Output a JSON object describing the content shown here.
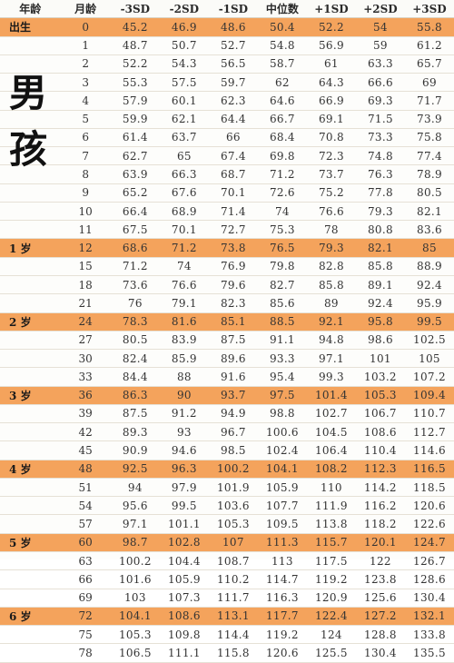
{
  "headers": [
    "年龄",
    "月龄",
    "-3SD",
    "-2SD",
    "-1SD",
    "中位数",
    "+1SD",
    "+2SD",
    "+3SD"
  ],
  "side_label": [
    "男",
    "孩"
  ],
  "rows": [
    {
      "label": "出生",
      "month": "0",
      "values": [
        "45.2",
        "46.9",
        "48.6",
        "50.4",
        "52.2",
        "54",
        "55.8"
      ],
      "highlight": true
    },
    {
      "label": "",
      "month": "1",
      "values": [
        "48.7",
        "50.7",
        "52.7",
        "54.8",
        "56.9",
        "59",
        "61.2"
      ],
      "highlight": false
    },
    {
      "label": "",
      "month": "2",
      "values": [
        "52.2",
        "54.3",
        "56.5",
        "58.7",
        "61",
        "63.3",
        "65.7"
      ],
      "highlight": false
    },
    {
      "label": "",
      "month": "3",
      "values": [
        "55.3",
        "57.5",
        "59.7",
        "62",
        "64.3",
        "66.6",
        "69"
      ],
      "highlight": false
    },
    {
      "label": "",
      "month": "4",
      "values": [
        "57.9",
        "60.1",
        "62.3",
        "64.6",
        "66.9",
        "69.3",
        "71.7"
      ],
      "highlight": false
    },
    {
      "label": "",
      "month": "5",
      "values": [
        "59.9",
        "62.1",
        "64.4",
        "66.7",
        "69.1",
        "71.5",
        "73.9"
      ],
      "highlight": false
    },
    {
      "label": "",
      "month": "6",
      "values": [
        "61.4",
        "63.7",
        "66",
        "68.4",
        "70.8",
        "73.3",
        "75.8"
      ],
      "highlight": false
    },
    {
      "label": "",
      "month": "7",
      "values": [
        "62.7",
        "65",
        "67.4",
        "69.8",
        "72.3",
        "74.8",
        "77.4"
      ],
      "highlight": false
    },
    {
      "label": "",
      "month": "8",
      "values": [
        "63.9",
        "66.3",
        "68.7",
        "71.2",
        "73.7",
        "76.3",
        "78.9"
      ],
      "highlight": false
    },
    {
      "label": "",
      "month": "9",
      "values": [
        "65.2",
        "67.6",
        "70.1",
        "72.6",
        "75.2",
        "77.8",
        "80.5"
      ],
      "highlight": false
    },
    {
      "label": "",
      "month": "10",
      "values": [
        "66.4",
        "68.9",
        "71.4",
        "74",
        "76.6",
        "79.3",
        "82.1"
      ],
      "highlight": false
    },
    {
      "label": "",
      "month": "11",
      "values": [
        "67.5",
        "70.1",
        "72.7",
        "75.3",
        "78",
        "80.8",
        "83.6"
      ],
      "highlight": false
    },
    {
      "label": "1 岁",
      "month": "12",
      "values": [
        "68.6",
        "71.2",
        "73.8",
        "76.5",
        "79.3",
        "82.1",
        "85"
      ],
      "highlight": true
    },
    {
      "label": "",
      "month": "15",
      "values": [
        "71.2",
        "74",
        "76.9",
        "79.8",
        "82.8",
        "85.8",
        "88.9"
      ],
      "highlight": false
    },
    {
      "label": "",
      "month": "18",
      "values": [
        "73.6",
        "76.6",
        "79.6",
        "82.7",
        "85.8",
        "89.1",
        "92.4"
      ],
      "highlight": false
    },
    {
      "label": "",
      "month": "21",
      "values": [
        "76",
        "79.1",
        "82.3",
        "85.6",
        "89",
        "92.4",
        "95.9"
      ],
      "highlight": false
    },
    {
      "label": "2 岁",
      "month": "24",
      "values": [
        "78.3",
        "81.6",
        "85.1",
        "88.5",
        "92.1",
        "95.8",
        "99.5"
      ],
      "highlight": true
    },
    {
      "label": "",
      "month": "27",
      "values": [
        "80.5",
        "83.9",
        "87.5",
        "91.1",
        "94.8",
        "98.6",
        "102.5"
      ],
      "highlight": false
    },
    {
      "label": "",
      "month": "30",
      "values": [
        "82.4",
        "85.9",
        "89.6",
        "93.3",
        "97.1",
        "101",
        "105"
      ],
      "highlight": false
    },
    {
      "label": "",
      "month": "33",
      "values": [
        "84.4",
        "88",
        "91.6",
        "95.4",
        "99.3",
        "103.2",
        "107.2"
      ],
      "highlight": false
    },
    {
      "label": "3 岁",
      "month": "36",
      "values": [
        "86.3",
        "90",
        "93.7",
        "97.5",
        "101.4",
        "105.3",
        "109.4"
      ],
      "highlight": true
    },
    {
      "label": "",
      "month": "39",
      "values": [
        "87.5",
        "91.2",
        "94.9",
        "98.8",
        "102.7",
        "106.7",
        "110.7"
      ],
      "highlight": false
    },
    {
      "label": "",
      "month": "42",
      "values": [
        "89.3",
        "93",
        "96.7",
        "100.6",
        "104.5",
        "108.6",
        "112.7"
      ],
      "highlight": false
    },
    {
      "label": "",
      "month": "45",
      "values": [
        "90.9",
        "94.6",
        "98.5",
        "102.4",
        "106.4",
        "110.4",
        "114.6"
      ],
      "highlight": false
    },
    {
      "label": "4 岁",
      "month": "48",
      "values": [
        "92.5",
        "96.3",
        "100.2",
        "104.1",
        "108.2",
        "112.3",
        "116.5"
      ],
      "highlight": true
    },
    {
      "label": "",
      "month": "51",
      "values": [
        "94",
        "97.9",
        "101.9",
        "105.9",
        "110",
        "114.2",
        "118.5"
      ],
      "highlight": false
    },
    {
      "label": "",
      "month": "54",
      "values": [
        "95.6",
        "99.5",
        "103.6",
        "107.7",
        "111.9",
        "116.2",
        "120.6"
      ],
      "highlight": false
    },
    {
      "label": "",
      "month": "57",
      "values": [
        "97.1",
        "101.1",
        "105.3",
        "109.5",
        "113.8",
        "118.2",
        "122.6"
      ],
      "highlight": false
    },
    {
      "label": "5 岁",
      "month": "60",
      "values": [
        "98.7",
        "102.8",
        "107",
        "111.3",
        "115.7",
        "120.1",
        "124.7"
      ],
      "highlight": true
    },
    {
      "label": "",
      "month": "63",
      "values": [
        "100.2",
        "104.4",
        "108.7",
        "113",
        "117.5",
        "122",
        "126.7"
      ],
      "highlight": false
    },
    {
      "label": "",
      "month": "66",
      "values": [
        "101.6",
        "105.9",
        "110.2",
        "114.7",
        "119.2",
        "123.8",
        "128.6"
      ],
      "highlight": false
    },
    {
      "label": "",
      "month": "69",
      "values": [
        "103",
        "107.3",
        "111.7",
        "116.3",
        "120.9",
        "125.6",
        "130.4"
      ],
      "highlight": false
    },
    {
      "label": "6 岁",
      "month": "72",
      "values": [
        "104.1",
        "108.6",
        "113.1",
        "117.7",
        "122.4",
        "127.2",
        "132.1"
      ],
      "highlight": true
    },
    {
      "label": "",
      "month": "75",
      "values": [
        "105.3",
        "109.8",
        "114.4",
        "119.2",
        "124",
        "128.8",
        "133.8"
      ],
      "highlight": false
    },
    {
      "label": "",
      "month": "78",
      "values": [
        "106.5",
        "111.1",
        "115.8",
        "120.6",
        "125.5",
        "130.4",
        "135.5"
      ],
      "highlight": false
    }
  ],
  "colors": {
    "highlight_row": "#f4a35c",
    "header_text": "#2a2a2a"
  }
}
